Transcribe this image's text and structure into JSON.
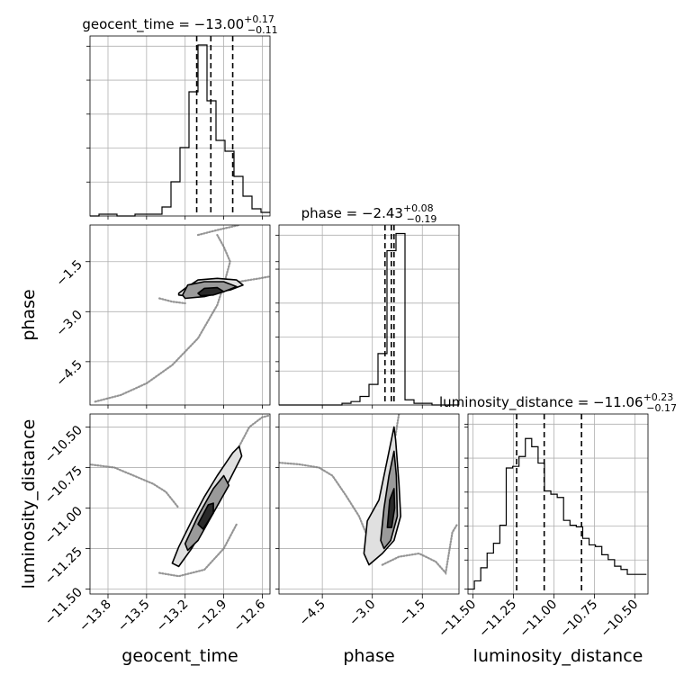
{
  "chart_data": {
    "type": "corner",
    "grid": true,
    "parameters": [
      "geocent_time",
      "phase",
      "luminosity_distance"
    ],
    "xlim": {
      "geocent_time": [
        -13.94,
        -12.54
      ],
      "phase": [
        -5.8,
        -0.4
      ],
      "luminosity_distance": [
        -11.53,
        -10.42
      ]
    },
    "ticks": {
      "geocent_time": [
        "−13.8",
        "−13.5",
        "−13.2",
        "−12.9",
        "−12.6"
      ],
      "phase": [
        "−4.5",
        "−3.0",
        "−1.5"
      ],
      "luminosity_distance": [
        "−11.50",
        "−11.25",
        "−11.00",
        "−10.75",
        "−10.50"
      ]
    },
    "tick_values": {
      "geocent_time": [
        -13.8,
        -13.5,
        -13.2,
        -12.9,
        -12.6
      ],
      "phase": [
        -4.5,
        -3.0,
        -1.5
      ],
      "luminosity_distance": [
        -11.5,
        -11.25,
        -11.0,
        -10.75,
        -10.5
      ]
    },
    "titles": {
      "geocent_time": {
        "name": "geocent_time",
        "median": "−13.00",
        "plus": "+0.17",
        "minus": "−0.11"
      },
      "phase": {
        "name": "phase",
        "median": "−2.43",
        "plus": "+0.08",
        "minus": "−0.19"
      },
      "luminosity_distance": {
        "name": "luminosity_distance",
        "median": "−11.06",
        "plus": "+0.23",
        "minus": "−0.17"
      }
    },
    "quantiles": {
      "geocent_time": [
        -13.11,
        -13.0,
        -12.83
      ],
      "phase": [
        -2.62,
        -2.43,
        -2.35
      ],
      "luminosity_distance": [
        -11.23,
        -11.06,
        -10.83
      ]
    },
    "histograms": {
      "geocent_time": {
        "edges": [
          -13.94,
          -13.87,
          -13.8,
          -13.73,
          -13.66,
          -13.59,
          -13.52,
          -13.45,
          -13.38,
          -13.31,
          -13.24,
          -13.17,
          -13.1,
          -13.03,
          -12.96,
          -12.89,
          -12.82,
          -12.75,
          -12.68,
          -12.61,
          -12.54
        ],
        "counts": [
          0,
          1,
          1,
          0,
          0,
          1,
          1,
          1,
          5,
          19,
          38,
          69,
          95,
          64,
          42,
          36,
          22,
          11,
          4,
          2
        ],
        "ylim": [
          0,
          100
        ]
      },
      "phase": {
        "edges": [
          -5.8,
          -5.53,
          -5.26,
          -4.99,
          -4.72,
          -4.45,
          -4.18,
          -3.91,
          -3.64,
          -3.37,
          -3.1,
          -2.83,
          -2.56,
          -2.29,
          -2.02,
          -1.75,
          -1.48,
          -1.21,
          -0.94,
          -0.67,
          -0.4
        ],
        "counts": [
          0,
          0,
          0,
          0,
          0,
          0,
          0,
          1,
          2,
          5,
          12,
          30,
          90,
          100,
          3,
          1,
          1,
          0,
          0,
          0
        ],
        "ylim": [
          0,
          105
        ]
      },
      "luminosity_distance": {
        "edges": [
          -11.53,
          -11.4907,
          -11.4514,
          -11.4121,
          -11.3728,
          -11.3335,
          -11.2942,
          -11.2549,
          -11.2156,
          -11.1763,
          -11.137,
          -11.0977,
          -11.0584,
          -11.0191,
          -10.9798,
          -10.9405,
          -10.9012,
          -10.8619,
          -10.8226,
          -10.7833,
          -10.744,
          -10.7047,
          -10.6654,
          -10.6261,
          -10.5868,
          -10.5475,
          -10.5082,
          -10.4689,
          -10.4296
        ],
        "counts": [
          3,
          8,
          16,
          25,
          31,
          42,
          77,
          78,
          84,
          95,
          90,
          80,
          63,
          61,
          59,
          45,
          42,
          41,
          34,
          30,
          29,
          24,
          21,
          17,
          15,
          12,
          12,
          12
        ],
        "ylim": [
          0,
          110
        ]
      }
    },
    "contours_2d": {
      "phase_vs_geocent_time": [
        [
          [
            -13.25,
            -2.45
          ],
          [
            -13.2,
            -2.3
          ],
          [
            -13.1,
            -2.05
          ],
          [
            -12.95,
            -2.0
          ],
          [
            -12.8,
            -2.05
          ],
          [
            -12.75,
            -2.2
          ],
          [
            -12.85,
            -2.35
          ],
          [
            -13.0,
            -2.45
          ],
          [
            -13.15,
            -2.55
          ],
          [
            -13.25,
            -2.5
          ]
        ],
        [
          [
            -13.22,
            -2.5
          ],
          [
            -13.18,
            -2.2
          ],
          [
            -13.05,
            -2.1
          ],
          [
            -12.9,
            -2.1
          ],
          [
            -12.8,
            -2.25
          ],
          [
            -12.9,
            -2.4
          ],
          [
            -13.05,
            -2.55
          ],
          [
            -13.2,
            -2.6
          ]
        ],
        [
          [
            -13.1,
            -2.45
          ],
          [
            -13.05,
            -2.3
          ],
          [
            -12.95,
            -2.28
          ],
          [
            -12.9,
            -2.4
          ],
          [
            -12.98,
            -2.5
          ],
          [
            -13.08,
            -2.52
          ]
        ]
      ],
      "luminosity_distance_vs_geocent_time": [
        [
          [
            -13.3,
            -11.34
          ],
          [
            -13.25,
            -11.24
          ],
          [
            -13.15,
            -11.08
          ],
          [
            -13.05,
            -10.93
          ],
          [
            -12.95,
            -10.8
          ],
          [
            -12.83,
            -10.66
          ],
          [
            -12.78,
            -10.62
          ],
          [
            -12.76,
            -10.68
          ],
          [
            -12.85,
            -10.82
          ],
          [
            -12.95,
            -10.97
          ],
          [
            -13.05,
            -11.12
          ],
          [
            -13.15,
            -11.25
          ],
          [
            -13.25,
            -11.36
          ]
        ],
        [
          [
            -13.2,
            -11.22
          ],
          [
            -13.1,
            -11.05
          ],
          [
            -12.98,
            -10.88
          ],
          [
            -12.9,
            -10.8
          ],
          [
            -12.86,
            -10.86
          ],
          [
            -12.98,
            -11.03
          ],
          [
            -13.1,
            -11.2
          ],
          [
            -13.18,
            -11.26
          ]
        ],
        [
          [
            -13.1,
            -11.1
          ],
          [
            -13.02,
            -10.98
          ],
          [
            -12.98,
            -10.97
          ],
          [
            -12.98,
            -11.03
          ],
          [
            -13.06,
            -11.13
          ]
        ]
      ],
      "luminosity_distance_vs_phase": [
        [
          [
            -3.25,
            -11.28
          ],
          [
            -3.15,
            -11.08
          ],
          [
            -2.8,
            -10.95
          ],
          [
            -2.55,
            -10.7
          ],
          [
            -2.35,
            -10.5
          ],
          [
            -2.3,
            -10.58
          ],
          [
            -2.2,
            -10.85
          ],
          [
            -2.15,
            -11.05
          ],
          [
            -2.35,
            -11.2
          ],
          [
            -2.7,
            -11.28
          ],
          [
            -3.1,
            -11.35
          ]
        ],
        [
          [
            -2.75,
            -11.2
          ],
          [
            -2.65,
            -11.0
          ],
          [
            -2.5,
            -10.8
          ],
          [
            -2.35,
            -10.65
          ],
          [
            -2.28,
            -10.8
          ],
          [
            -2.25,
            -11.05
          ],
          [
            -2.45,
            -11.2
          ],
          [
            -2.65,
            -11.25
          ]
        ],
        [
          [
            -2.55,
            -11.12
          ],
          [
            -2.48,
            -10.95
          ],
          [
            -2.35,
            -10.88
          ],
          [
            -2.33,
            -11.0
          ],
          [
            -2.42,
            -11.12
          ]
        ]
      ]
    },
    "tails_2d": {
      "phase_vs_geocent_time": [
        [
          [
            -13.9,
            -5.7
          ],
          [
            -13.7,
            -5.5
          ],
          [
            -13.5,
            -5.15
          ],
          [
            -13.3,
            -4.6
          ],
          [
            -13.1,
            -3.8
          ],
          [
            -12.95,
            -2.8
          ],
          [
            -12.9,
            -2.2
          ],
          [
            -12.85,
            -1.5
          ],
          [
            -12.9,
            -1.05
          ],
          [
            -12.95,
            -0.7
          ]
        ],
        [
          [
            -13.1,
            -0.7
          ],
          [
            -12.95,
            -0.55
          ],
          [
            -12.78,
            -0.4
          ]
        ],
        [
          [
            -12.78,
            -2.1
          ],
          [
            -12.7,
            -2.05
          ],
          [
            -12.62,
            -2.0
          ],
          [
            -12.55,
            -1.95
          ]
        ],
        [
          [
            -13.4,
            -2.6
          ],
          [
            -13.3,
            -2.7
          ],
          [
            -13.2,
            -2.75
          ]
        ]
      ],
      "luminosity_distance_vs_geocent_time": [
        [
          [
            -13.95,
            -10.73
          ],
          [
            -13.75,
            -10.75
          ],
          [
            -13.6,
            -10.8
          ],
          [
            -13.45,
            -10.85
          ],
          [
            -13.35,
            -10.9
          ],
          [
            -13.25,
            -11.0
          ]
        ],
        [
          [
            -13.4,
            -11.4
          ],
          [
            -13.25,
            -11.42
          ],
          [
            -13.05,
            -11.38
          ],
          [
            -12.9,
            -11.25
          ],
          [
            -12.8,
            -11.1
          ]
        ],
        [
          [
            -12.78,
            -10.62
          ],
          [
            -12.7,
            -10.5
          ],
          [
            -12.6,
            -10.44
          ],
          [
            -12.55,
            -10.43
          ]
        ]
      ],
      "luminosity_distance_vs_phase": [
        [
          [
            -5.8,
            -10.72
          ],
          [
            -5.2,
            -10.73
          ],
          [
            -4.6,
            -10.75
          ],
          [
            -4.2,
            -10.8
          ],
          [
            -3.8,
            -10.92
          ],
          [
            -3.4,
            -11.05
          ],
          [
            -3.1,
            -11.2
          ],
          [
            -2.9,
            -11.3
          ]
        ],
        [
          [
            -2.7,
            -11.35
          ],
          [
            -2.2,
            -11.3
          ],
          [
            -1.6,
            -11.28
          ],
          [
            -1.1,
            -11.33
          ],
          [
            -0.8,
            -11.4
          ],
          [
            -0.6,
            -11.15
          ],
          [
            -0.45,
            -11.1
          ]
        ],
        [
          [
            -2.3,
            -10.55
          ],
          [
            -2.25,
            -10.48
          ],
          [
            -2.2,
            -10.42
          ]
        ]
      ]
    }
  }
}
